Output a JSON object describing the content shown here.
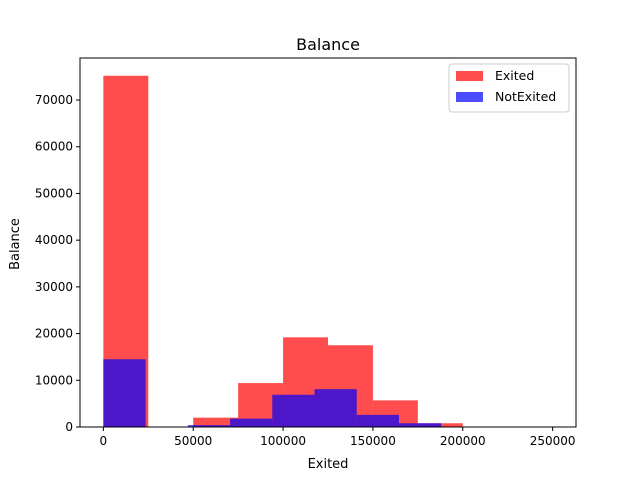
{
  "chart_data": {
    "type": "bar",
    "title": "Balance",
    "xlabel": "Exited",
    "ylabel": "Balance",
    "xlim": [
      -13000,
      263000
    ],
    "ylim": [
      0,
      79000
    ],
    "xticks": [
      0,
      50000,
      100000,
      150000,
      200000,
      250000
    ],
    "yticks": [
      0,
      10000,
      20000,
      30000,
      40000,
      50000,
      60000,
      70000
    ],
    "legend_position": "top-right",
    "grid": false,
    "series": [
      {
        "name": "Exited",
        "color": "#ff0000",
        "alpha": 0.7,
        "bins": [
          {
            "x0": 0,
            "x1": 25000,
            "value": 75200
          },
          {
            "x0": 50000,
            "x1": 75000,
            "value": 2000
          },
          {
            "x0": 75000,
            "x1": 100000,
            "value": 9400
          },
          {
            "x0": 100000,
            "x1": 125000,
            "value": 19200
          },
          {
            "x0": 125000,
            "x1": 150000,
            "value": 17500
          },
          {
            "x0": 150000,
            "x1": 175000,
            "value": 5700
          },
          {
            "x0": 175000,
            "x1": 200000,
            "value": 800
          }
        ]
      },
      {
        "name": "NotExited",
        "color": "#0000ff",
        "alpha": 0.7,
        "bins": [
          {
            "x0": 0,
            "x1": 23500,
            "value": 14500
          },
          {
            "x0": 47000,
            "x1": 70500,
            "value": 400
          },
          {
            "x0": 70500,
            "x1": 94000,
            "value": 1800
          },
          {
            "x0": 94000,
            "x1": 117500,
            "value": 6900
          },
          {
            "x0": 117500,
            "x1": 141000,
            "value": 8100
          },
          {
            "x0": 141000,
            "x1": 164500,
            "value": 2600
          },
          {
            "x0": 164500,
            "x1": 188000,
            "value": 800
          },
          {
            "x0": 188000,
            "x1": 211500,
            "value": 100
          }
        ]
      }
    ]
  }
}
